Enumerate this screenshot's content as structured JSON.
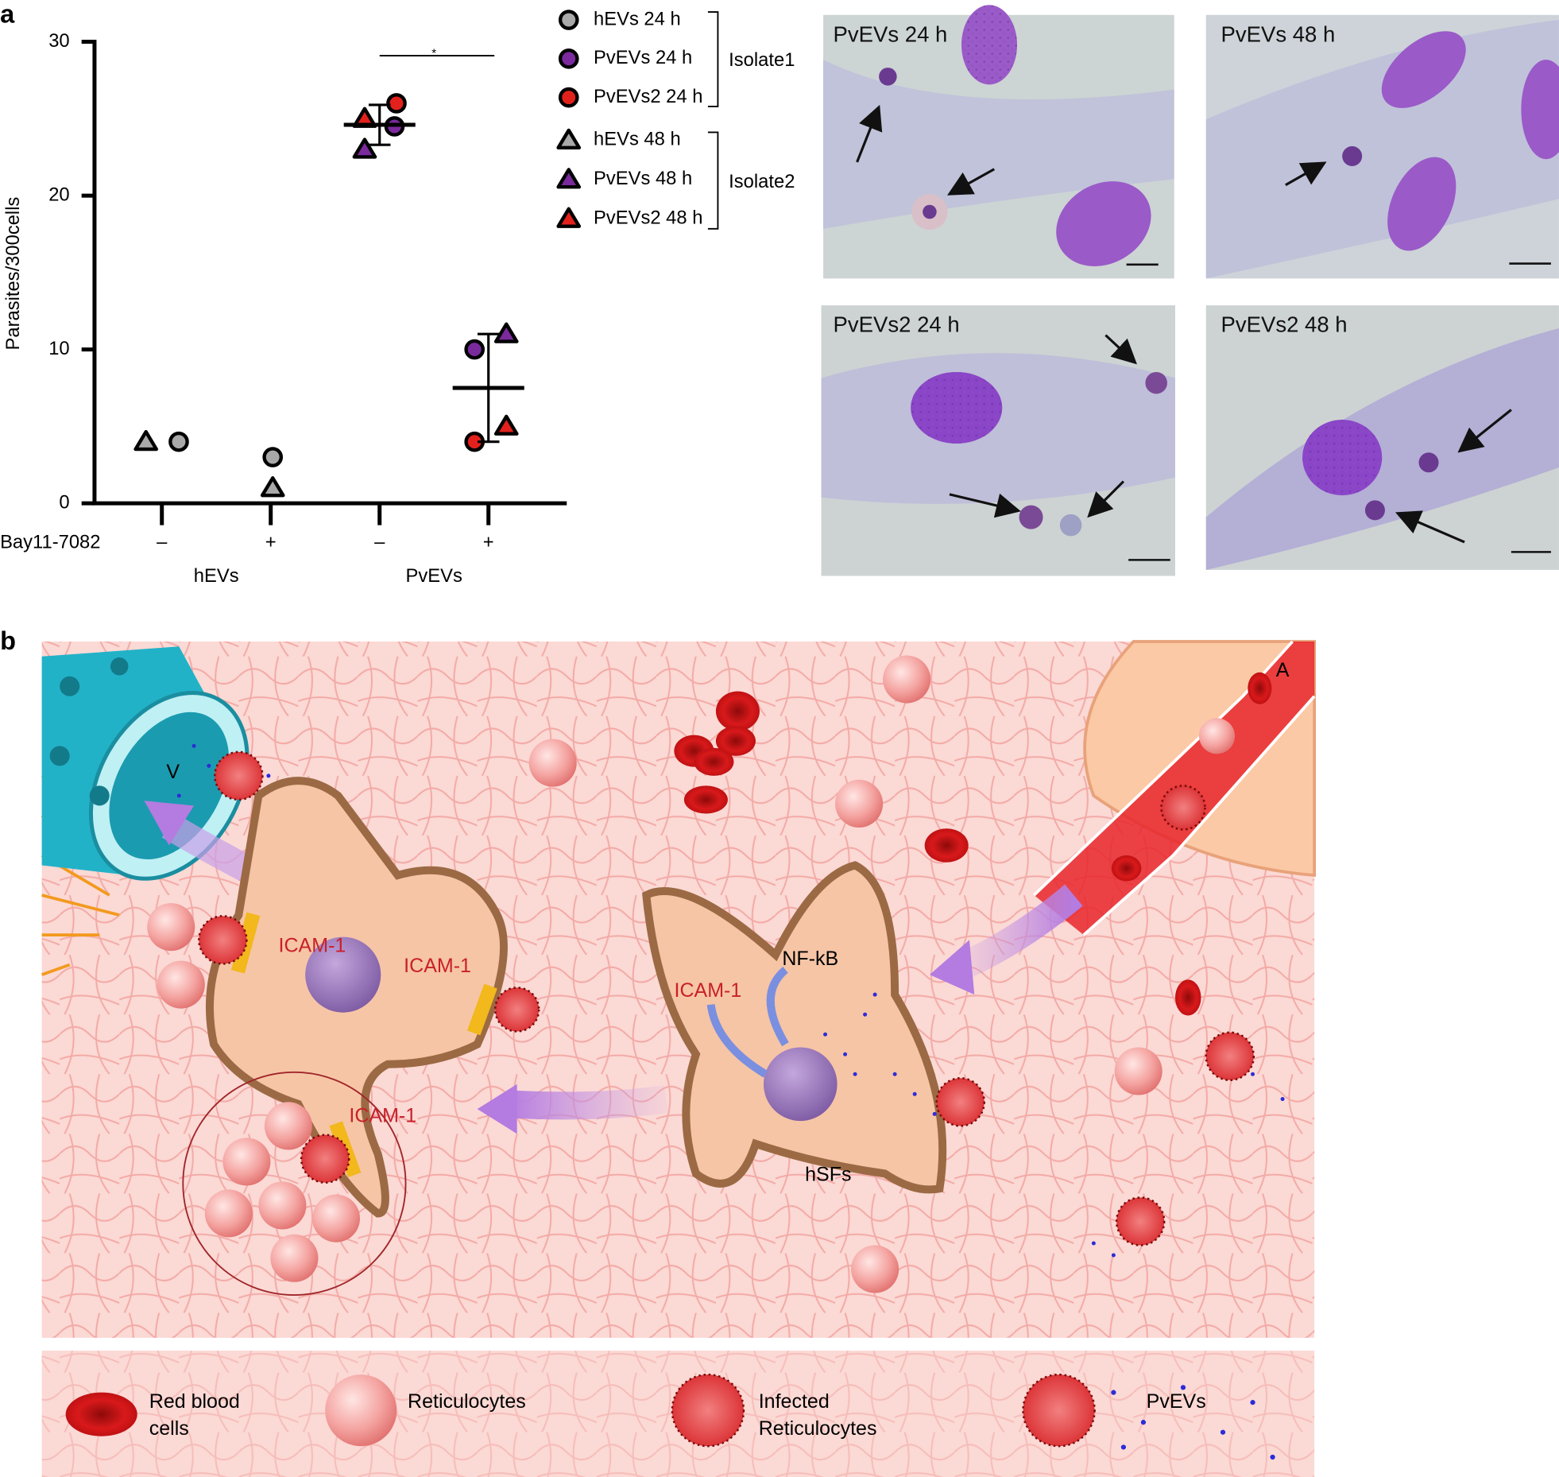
{
  "panel_labels": [
    "a",
    "b"
  ],
  "chart_data": {
    "type": "scatter",
    "y_label": "Parasites/300cells",
    "row_label": "Bay11-7082",
    "categories": [
      "–",
      "+",
      "–",
      "+"
    ],
    "x_groups": [
      "hEVs",
      "PvEVs"
    ],
    "ylim": [
      0,
      30
    ],
    "yticks": [
      0,
      10,
      20,
      30
    ],
    "series": [
      {
        "name": "hEVs 24 h",
        "marker": "circle",
        "color": "#a9a9a9",
        "values": [
          4,
          3,
          null,
          null
        ]
      },
      {
        "name": "PvEVs 24 h",
        "marker": "circle",
        "color": "#7a2a9c",
        "values": [
          null,
          null,
          24.5,
          10
        ]
      },
      {
        "name": "PvEVs2 24 h",
        "marker": "circle",
        "color": "#e3211c",
        "values": [
          null,
          null,
          26,
          4
        ]
      },
      {
        "name": "hEVs 48 h",
        "marker": "triangle",
        "color": "#a9a9a9",
        "values": [
          4,
          1,
          null,
          null
        ]
      },
      {
        "name": "PvEVs 48 h",
        "marker": "triangle",
        "color": "#7a2a9c",
        "values": [
          null,
          null,
          23,
          11
        ]
      },
      {
        "name": "PvEVs2 48 h",
        "marker": "triangle",
        "color": "#e3211c",
        "values": [
          null,
          null,
          25,
          5
        ]
      }
    ],
    "means": [
      null,
      null,
      24.6,
      7.5
    ],
    "sds": [
      null,
      null,
      1.3,
      3.5
    ],
    "significance": "*",
    "legend_groups": [
      "Isolate1",
      "Isolate2"
    ]
  },
  "micrographs": [
    "PvEVs 24 h",
    "PvEVs 48 h",
    "PvEVs2 24 h",
    "PvEVs2 48 h"
  ],
  "diagram": {
    "vessel_labels": [
      "V",
      "A"
    ],
    "receptor_labels": [
      "ICAM-1",
      "ICAM-1",
      "ICAM-1",
      "ICAM-1"
    ],
    "pathway_label": "NF-kB",
    "cell_label": "hSFs",
    "legend": [
      [
        "Red blood",
        "cells"
      ],
      [
        "Reticulocytes"
      ],
      [
        "Infected",
        "Reticulocytes"
      ],
      [
        "PvEVs"
      ]
    ]
  }
}
